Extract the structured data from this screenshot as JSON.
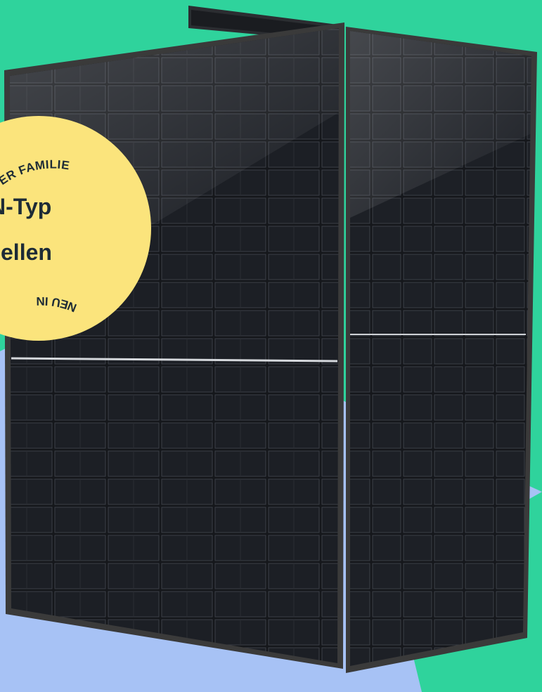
{
  "colors": {
    "background_green": "#2fd39c",
    "background_blue": "#a7c2f5",
    "panel_frame": "#3a3a3a",
    "panel_cells": "#15171b",
    "badge_fill": "#fbe47c",
    "badge_text": "#1d2b36"
  },
  "badge": {
    "line1": "N-Typ",
    "line2": "zellen",
    "ring_top": "NEU IN DER FAMILIE",
    "ring_bottom": "NEU IN"
  },
  "product": {
    "left_panel_rows": 12,
    "left_panel_cols": 6,
    "right_panel_rows": 12,
    "right_panel_cols": 6
  }
}
